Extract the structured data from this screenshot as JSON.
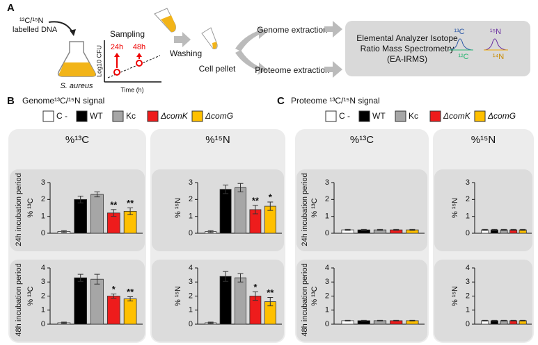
{
  "panel_a": {
    "label": "A",
    "dna_label": [
      "¹³C/¹⁵N",
      "labelled DNA"
    ],
    "organism": "S. aureus",
    "sampling": "Sampling",
    "timepoints": [
      "24h",
      "48h"
    ],
    "y_axis": "Log10 CFU",
    "x_axis": "Time (h)",
    "washing": "Washing",
    "cell_pellet": "Cell pellet",
    "genome_extraction": "Genome extraction",
    "proteome_extraction": "Proteome extraction",
    "instrument": [
      "Elemental Analyzer Isotope",
      "Ratio Mass Spectrometry",
      "(EA-IRMS)"
    ],
    "isotopes": [
      "¹³C",
      "¹²C",
      "¹⁵N",
      "¹⁴N"
    ]
  },
  "panel_b": {
    "label": "B",
    "title": "Genome¹³C/¹⁵N signal"
  },
  "panel_c": {
    "label": "C",
    "title": "Proteome ¹³C/¹⁵N signal"
  },
  "legend": [
    {
      "name": "C -",
      "color": "#ffffff"
    },
    {
      "name": "WT",
      "color": "#000000"
    },
    {
      "name": "Kc",
      "color": "#a6a6a6"
    },
    {
      "name": "ΔcomK",
      "color": "#ee1c1c"
    },
    {
      "name": "ΔcomG",
      "color": "#ffc000"
    }
  ],
  "columns": [
    "%¹³C",
    "%¹⁵N"
  ],
  "rows": [
    "24h incubation period",
    "48h incubation period"
  ],
  "chart_data": [
    {
      "type": "bar",
      "ylabel": "% ¹³C",
      "ylim": [
        0,
        3
      ],
      "yticks": [
        0,
        1,
        2,
        3
      ],
      "values": [
        0.1,
        2.0,
        2.3,
        1.2,
        1.3
      ],
      "errors": [
        0.05,
        0.2,
        0.15,
        0.2,
        0.2
      ],
      "annotations": [
        null,
        null,
        null,
        "**",
        "**"
      ]
    },
    {
      "type": "bar",
      "ylabel": "% ¹⁵N",
      "ylim": [
        0,
        3
      ],
      "yticks": [
        0,
        1,
        2,
        3
      ],
      "values": [
        0.1,
        2.6,
        2.7,
        1.4,
        1.6
      ],
      "errors": [
        0.05,
        0.25,
        0.25,
        0.25,
        0.25
      ],
      "annotations": [
        null,
        null,
        null,
        "**",
        "*"
      ]
    },
    {
      "type": "bar",
      "ylabel": "% ¹³C",
      "ylim": [
        0,
        4
      ],
      "yticks": [
        0,
        1,
        2,
        3,
        4
      ],
      "values": [
        0.1,
        3.3,
        3.2,
        2.0,
        1.8
      ],
      "errors": [
        0.05,
        0.25,
        0.35,
        0.15,
        0.15
      ],
      "annotations": [
        null,
        null,
        null,
        "*",
        "**"
      ]
    },
    {
      "type": "bar",
      "ylabel": "% ¹⁵N",
      "ylim": [
        0,
        4
      ],
      "yticks": [
        0,
        1,
        2,
        3,
        4
      ],
      "values": [
        0.1,
        3.4,
        3.3,
        2.0,
        1.6
      ],
      "errors": [
        0.05,
        0.35,
        0.3,
        0.3,
        0.3
      ],
      "annotations": [
        null,
        null,
        null,
        "*",
        "**"
      ]
    },
    {
      "type": "bar",
      "ylabel": "% ¹³C",
      "ylim": [
        0,
        3
      ],
      "yticks": [
        0,
        1,
        2,
        3
      ],
      "values": [
        0.2,
        0.2,
        0.2,
        0.2,
        0.2
      ],
      "errors": [
        0.03,
        0.03,
        0.03,
        0.03,
        0.03
      ],
      "annotations": [
        null,
        null,
        null,
        null,
        null
      ]
    },
    {
      "type": "bar",
      "ylabel": "% ¹⁵N",
      "ylim": [
        0,
        3
      ],
      "yticks": [
        0,
        1,
        2,
        3
      ],
      "values": [
        0.2,
        0.2,
        0.2,
        0.2,
        0.2
      ],
      "errors": [
        0.03,
        0.03,
        0.03,
        0.03,
        0.03
      ],
      "annotations": [
        null,
        null,
        null,
        null,
        null
      ]
    },
    {
      "type": "bar",
      "ylabel": "% ¹³C",
      "ylim": [
        0,
        4
      ],
      "yticks": [
        0,
        1,
        2,
        3,
        4
      ],
      "values": [
        0.25,
        0.25,
        0.25,
        0.25,
        0.25
      ],
      "errors": [
        0.03,
        0.03,
        0.03,
        0.03,
        0.03
      ],
      "annotations": [
        null,
        null,
        null,
        null,
        null
      ]
    },
    {
      "type": "bar",
      "ylabel": "% ¹⁵N",
      "ylim": [
        0,
        4
      ],
      "yticks": [
        0,
        1,
        2,
        3,
        4
      ],
      "values": [
        0.25,
        0.25,
        0.25,
        0.25,
        0.25
      ],
      "errors": [
        0.03,
        0.03,
        0.03,
        0.03,
        0.03
      ],
      "annotations": [
        null,
        null,
        null,
        null,
        null
      ]
    }
  ]
}
